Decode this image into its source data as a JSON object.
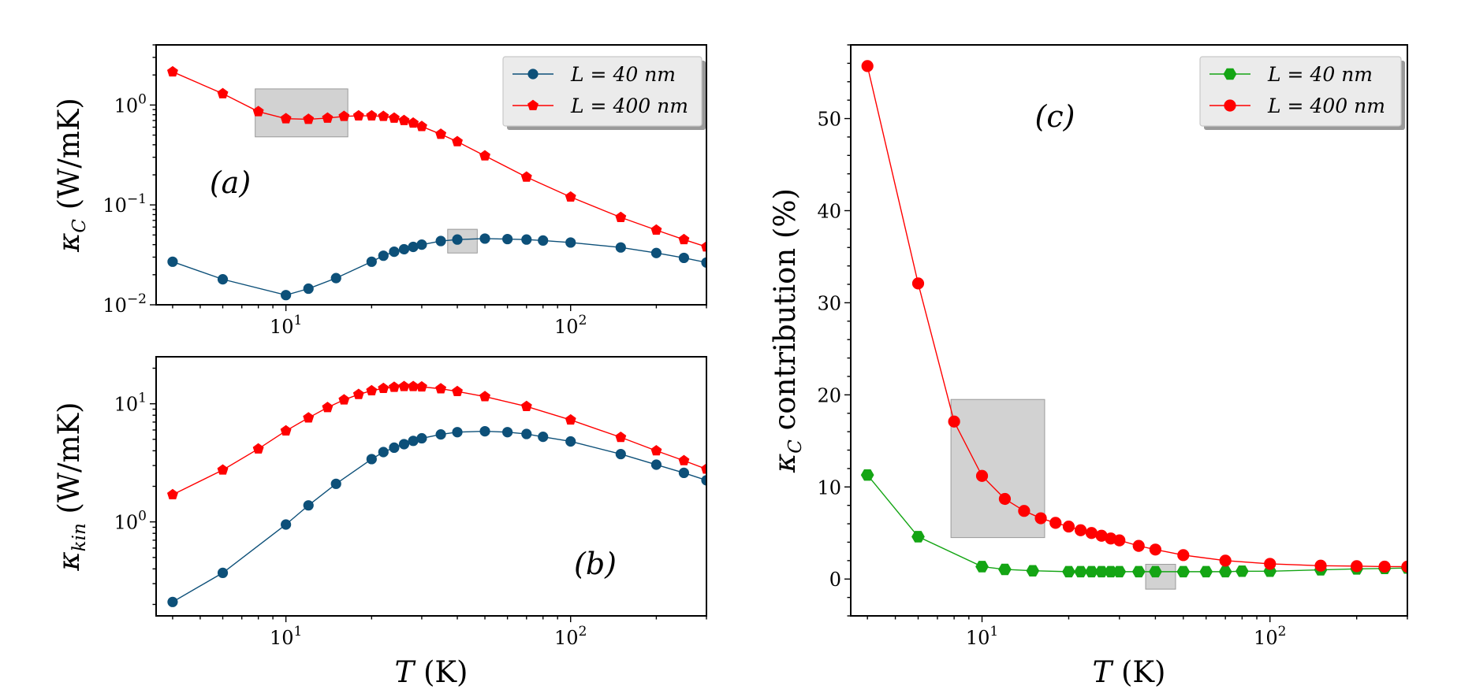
{
  "colors": {
    "blue": "#0d5079",
    "red": "#ff0000",
    "green": "#14a514",
    "shade": "#b4b4b4",
    "axis": "#000000",
    "legend_bg": "#ebebeb"
  },
  "chart_data": [
    {
      "id": "a",
      "type": "line",
      "panel_label": "(a)",
      "xscale": "log",
      "yscale": "log",
      "xlim": [
        3.5,
        300
      ],
      "ylim": [
        0.01,
        4.0
      ],
      "xlabel": "",
      "ylabel": "κ_C (W/mK)",
      "ylabel_main": "κ",
      "ylabel_sub": "C",
      "ylabel_rest": " (W/mK)",
      "xticks": [
        {
          "v": 10,
          "base": "10",
          "exp": "1"
        },
        {
          "v": 100,
          "base": "10",
          "exp": "2"
        }
      ],
      "yticks": [
        {
          "v": 0.01,
          "base": "10",
          "exp": "−2"
        },
        {
          "v": 0.1,
          "base": "10",
          "exp": "−1"
        },
        {
          "v": 1,
          "base": "10",
          "exp": "0"
        }
      ],
      "legend": {
        "position": "upper-right",
        "entries": [
          {
            "label": "L = 40 nm",
            "series": 0
          },
          {
            "label": "L = 400 nm",
            "series": 1
          }
        ]
      },
      "series": [
        {
          "name": "L = 40 nm",
          "color": "blue",
          "marker": "circle",
          "x": [
            4,
            6,
            10,
            12,
            15,
            20,
            22,
            24,
            26,
            28,
            30,
            35,
            40,
            50,
            60,
            70,
            80,
            100,
            150,
            200,
            250,
            300
          ],
          "y": [
            0.027,
            0.018,
            0.0125,
            0.0145,
            0.0185,
            0.027,
            0.031,
            0.034,
            0.036,
            0.038,
            0.04,
            0.0435,
            0.045,
            0.046,
            0.0455,
            0.045,
            0.044,
            0.042,
            0.0375,
            0.033,
            0.0295,
            0.0265
          ]
        },
        {
          "name": "L = 400 nm",
          "color": "red",
          "marker": "pentagon",
          "x": [
            4,
            6,
            8,
            10,
            12,
            14,
            16,
            18,
            20,
            22,
            24,
            26,
            28,
            30,
            35,
            40,
            50,
            70,
            100,
            150,
            200,
            250,
            300
          ],
          "y": [
            2.15,
            1.3,
            0.86,
            0.73,
            0.72,
            0.74,
            0.77,
            0.78,
            0.78,
            0.77,
            0.74,
            0.7,
            0.66,
            0.61,
            0.51,
            0.43,
            0.31,
            0.19,
            0.12,
            0.075,
            0.056,
            0.045,
            0.038
          ]
        }
      ],
      "highlights": [
        {
          "x": [
            7.8,
            16.5
          ],
          "y": [
            0.48,
            1.45
          ]
        },
        {
          "x": [
            37,
            47
          ],
          "y": [
            0.033,
            0.057
          ]
        }
      ]
    },
    {
      "id": "b",
      "type": "line",
      "panel_label": "(b)",
      "xscale": "log",
      "yscale": "log",
      "xlim": [
        3.5,
        300
      ],
      "ylim": [
        0.16,
        25
      ],
      "xlabel": "T (K)",
      "ylabel": "κ_kin (W/mK)",
      "xlabel_main": "T",
      "xlabel_rest": " (K)",
      "ylabel_main": "κ",
      "ylabel_sub": "kin",
      "ylabel_rest": " (W/mK)",
      "xticks": [
        {
          "v": 10,
          "base": "10",
          "exp": "1"
        },
        {
          "v": 100,
          "base": "10",
          "exp": "2"
        }
      ],
      "yticks": [
        {
          "v": 1,
          "base": "10",
          "exp": "0"
        },
        {
          "v": 10,
          "base": "10",
          "exp": "1"
        }
      ],
      "series": [
        {
          "name": "L = 40 nm",
          "color": "blue",
          "marker": "circle",
          "x": [
            4,
            6,
            10,
            12,
            15,
            20,
            22,
            24,
            26,
            28,
            30,
            35,
            40,
            50,
            60,
            70,
            80,
            100,
            150,
            200,
            250,
            300
          ],
          "y": [
            0.21,
            0.37,
            0.95,
            1.38,
            2.1,
            3.4,
            3.9,
            4.25,
            4.55,
            4.85,
            5.1,
            5.5,
            5.75,
            5.85,
            5.75,
            5.55,
            5.25,
            4.8,
            3.75,
            3.05,
            2.6,
            2.25
          ]
        },
        {
          "name": "L = 400 nm",
          "color": "red",
          "marker": "pentagon",
          "x": [
            4,
            6,
            8,
            10,
            12,
            14,
            16,
            18,
            20,
            22,
            24,
            26,
            28,
            30,
            35,
            40,
            50,
            70,
            100,
            150,
            200,
            250,
            300
          ],
          "y": [
            1.7,
            2.75,
            4.15,
            5.9,
            7.6,
            9.3,
            10.8,
            12.0,
            12.9,
            13.5,
            13.8,
            14.0,
            14.0,
            13.9,
            13.4,
            12.7,
            11.5,
            9.5,
            7.3,
            5.2,
            4.0,
            3.3,
            2.8
          ]
        }
      ]
    },
    {
      "id": "c",
      "type": "line",
      "panel_label": "(c)",
      "xscale": "log",
      "yscale": "linear",
      "xlim": [
        3.5,
        300
      ],
      "ylim": [
        -4,
        58
      ],
      "xlabel": "T (K)",
      "ylabel": "κ_C contribution (%)",
      "xlabel_main": "T",
      "xlabel_rest": " (K)",
      "ylabel_main": "κ",
      "ylabel_sub": "C",
      "ylabel_rest": " contribution (%)",
      "xticks": [
        {
          "v": 10,
          "base": "10",
          "exp": "1"
        },
        {
          "v": 100,
          "base": "10",
          "exp": "2"
        }
      ],
      "yticks": [
        {
          "v": 0,
          "label": "0"
        },
        {
          "v": 10,
          "label": "10"
        },
        {
          "v": 20,
          "label": "20"
        },
        {
          "v": 30,
          "label": "30"
        },
        {
          "v": 40,
          "label": "40"
        },
        {
          "v": 50,
          "label": "50"
        }
      ],
      "legend": {
        "position": "upper-right",
        "entries": [
          {
            "label": "L = 40 nm",
            "series": 0
          },
          {
            "label": "L = 400 nm",
            "series": 1
          }
        ]
      },
      "series": [
        {
          "name": "L = 40 nm",
          "color": "green",
          "marker": "hexagon",
          "x": [
            4,
            6,
            10,
            12,
            15,
            20,
            22,
            24,
            26,
            28,
            30,
            35,
            40,
            50,
            60,
            70,
            80,
            100,
            150,
            200,
            250,
            300
          ],
          "y": [
            11.3,
            4.6,
            1.35,
            1.05,
            0.9,
            0.8,
            0.8,
            0.8,
            0.8,
            0.8,
            0.8,
            0.8,
            0.8,
            0.8,
            0.8,
            0.8,
            0.85,
            0.85,
            1.0,
            1.1,
            1.15,
            1.2
          ]
        },
        {
          "name": "L = 400 nm",
          "color": "red",
          "marker": "circle",
          "x": [
            4,
            6,
            8,
            10,
            12,
            14,
            16,
            18,
            20,
            22,
            24,
            26,
            28,
            30,
            35,
            40,
            50,
            70,
            100,
            150,
            200,
            250,
            300
          ],
          "y": [
            55.7,
            32.1,
            17.1,
            11.2,
            8.7,
            7.4,
            6.6,
            6.1,
            5.7,
            5.3,
            5.0,
            4.7,
            4.4,
            4.2,
            3.6,
            3.2,
            2.6,
            2.0,
            1.65,
            1.45,
            1.4,
            1.35,
            1.35
          ]
        }
      ],
      "highlights": [
        {
          "x": [
            7.8,
            16.5
          ],
          "y": [
            4.5,
            19.5
          ]
        },
        {
          "x": [
            37,
            47
          ],
          "y": [
            -1.1,
            1.6
          ]
        }
      ]
    }
  ]
}
